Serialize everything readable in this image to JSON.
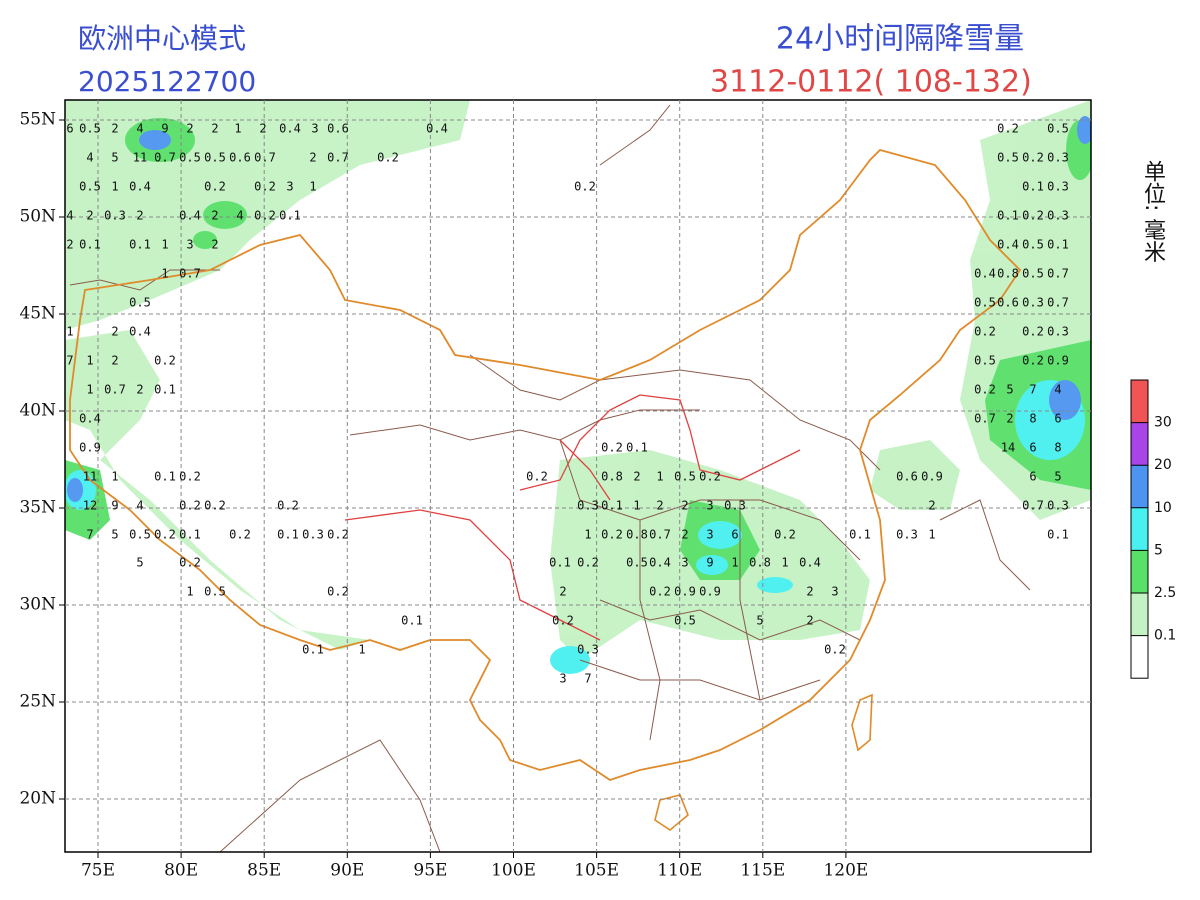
{
  "header": {
    "model": "欧洲中心模式",
    "run": "2025122700",
    "title": "24小时间隔降雪量",
    "period": "3112-0112( 108-132)"
  },
  "unit": "单位: 毫米",
  "map": {
    "lat_ticks": [
      {
        "value": 55,
        "label": "55N"
      },
      {
        "value": 50,
        "label": "50N"
      },
      {
        "value": 45,
        "label": "45N"
      },
      {
        "value": 40,
        "label": "40N"
      },
      {
        "value": 35,
        "label": "35N"
      },
      {
        "value": 30,
        "label": "30N"
      },
      {
        "value": 25,
        "label": "25N"
      },
      {
        "value": 20,
        "label": "20N"
      }
    ],
    "lon_ticks": [
      {
        "value": 75,
        "label": "75E"
      },
      {
        "value": 80,
        "label": "80E"
      },
      {
        "value": 85,
        "label": "85E"
      },
      {
        "value": 90,
        "label": "90E"
      },
      {
        "value": 95,
        "label": "95E"
      },
      {
        "value": 100,
        "label": "100E"
      },
      {
        "value": 105,
        "label": "105E"
      },
      {
        "value": 110,
        "label": "110E"
      },
      {
        "value": 115,
        "label": "115E"
      },
      {
        "value": 120,
        "label": "120E"
      }
    ],
    "station_labels": [
      [
        "6",
        "0.5",
        "2",
        "4",
        "9",
        "2",
        "2",
        "1",
        "2",
        "0.4",
        "3",
        "0.6",
        "0.4",
        "0.2",
        "0.5"
      ],
      [
        "4",
        "5",
        "11",
        "0.7",
        "0.5",
        "0.5",
        "0.6",
        "0.7",
        "2",
        "0.7",
        "0.2",
        "0.5",
        "0.2",
        "0.3"
      ],
      [
        "0.5",
        "1",
        "0.4",
        "0.2",
        "0.2",
        "3",
        "1",
        "0.2",
        "0.1",
        "0.3"
      ],
      [
        "4",
        "2",
        "0.3",
        "2",
        "0.4",
        "2",
        "4",
        "0.2",
        "0.1",
        "0.1",
        "0.2",
        "0.3"
      ],
      [
        "2",
        "0.1",
        "0.1",
        "1",
        "3",
        "2",
        "0.4",
        "0.5",
        "0.1"
      ],
      [
        "1",
        "0.7",
        "0.4",
        "0.8",
        "0.5",
        "0.7"
      ],
      [
        "0.5",
        "0.5",
        "0.6",
        "0.3",
        "0.7"
      ],
      [
        "1",
        "2",
        "0.4",
        "0.2",
        "0.2",
        "0.3"
      ],
      [
        "7",
        "1",
        "2",
        "0.2",
        "0.5",
        "0.2",
        "0.9"
      ],
      [
        "1",
        "0.7",
        "2",
        "0.1",
        "0.2",
        "5",
        "7",
        "4"
      ],
      [
        "0.4",
        "0.7",
        "2",
        "8",
        "6"
      ],
      [
        "0.9",
        "0.2",
        "0.1",
        "14",
        "6",
        "8"
      ],
      [
        "11",
        "1",
        "0.1",
        "0.2",
        "0.2",
        "0.8",
        "2",
        "1",
        "0.5",
        "0.2",
        "0.6",
        "0.9",
        "6",
        "5"
      ],
      [
        "12",
        "9",
        "4",
        "0.2",
        "0.2",
        "0.2",
        "0.3",
        "0.1",
        "1",
        "2",
        "2",
        "3",
        "0.3",
        "2",
        "0.7",
        "0.3"
      ],
      [
        "7",
        "5",
        "0.5",
        "0.2",
        "0.1",
        "0.2",
        "0.1",
        "0.3",
        "0.2",
        "1",
        "0.2",
        "0.8",
        "0.7",
        "2",
        "3",
        "6",
        "0.2",
        "0.1",
        "0.3",
        "1",
        "0.1"
      ],
      [
        "5",
        "0.2",
        "0.1",
        "0.2",
        "0.5",
        "0.4",
        "3",
        "9",
        "1",
        "0.8",
        "1",
        "0.4"
      ],
      [
        "1",
        "0.5",
        "0.2",
        "2",
        "0.2",
        "0.9",
        "0.9",
        "2",
        "3"
      ],
      [
        "0.1",
        "0.2",
        "0.5",
        "5",
        "2"
      ],
      [
        "0.1",
        "1",
        "0.3",
        "0.2"
      ],
      [
        "3",
        "7"
      ]
    ]
  },
  "legend": {
    "levels": [
      30,
      20,
      10,
      5,
      2.5,
      0.1
    ],
    "colors": [
      "#f05454",
      "#a844e8",
      "#4c94f0",
      "#48f0f0",
      "#58e068",
      "#c4f2c4",
      "#ffffff"
    ]
  }
}
